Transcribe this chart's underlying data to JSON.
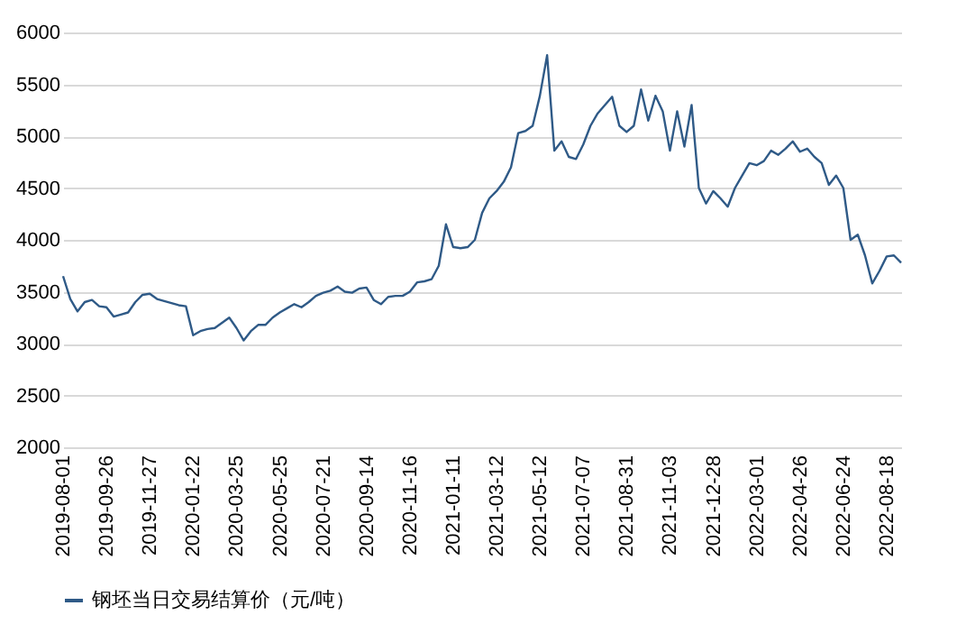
{
  "chart_data": {
    "type": "line",
    "categories": [
      "2019-08-01",
      null,
      null,
      null,
      null,
      null,
      "2019-09-26",
      null,
      null,
      null,
      null,
      null,
      "2019-11-27",
      null,
      null,
      null,
      null,
      null,
      "2020-01-22",
      null,
      null,
      null,
      null,
      null,
      "2020-03-25",
      null,
      null,
      null,
      null,
      null,
      "2020-05-25",
      null,
      null,
      null,
      null,
      null,
      "2020-07-21",
      null,
      null,
      null,
      null,
      null,
      "2020-09-14",
      null,
      null,
      null,
      null,
      null,
      "2020-11-16",
      null,
      null,
      null,
      null,
      null,
      "2021-01-11",
      null,
      null,
      null,
      null,
      null,
      "2021-03-12",
      null,
      null,
      null,
      null,
      null,
      "2021-05-12",
      null,
      null,
      null,
      null,
      null,
      "2021-07-07",
      null,
      null,
      null,
      null,
      null,
      "2021-08-31",
      null,
      null,
      null,
      null,
      null,
      "2021-11-03",
      null,
      null,
      null,
      null,
      null,
      "2021-12-28",
      null,
      null,
      null,
      null,
      null,
      "2022-03-01",
      null,
      null,
      null,
      null,
      null,
      "2022-04-26",
      null,
      null,
      null,
      null,
      null,
      "2022-06-24",
      null,
      null,
      null,
      null,
      null,
      "2022-08-18",
      null,
      null
    ],
    "series": [
      {
        "name": "钢坯当日交易结算价（元/吨）",
        "color": "#2f5a87",
        "values": [
          3650,
          3430,
          3310,
          3400,
          3420,
          3360,
          3350,
          3260,
          3280,
          3300,
          3400,
          3470,
          3480,
          3430,
          3410,
          3390,
          3370,
          3360,
          3080,
          3120,
          3140,
          3150,
          3200,
          3250,
          3150,
          3030,
          3120,
          3180,
          3180,
          3250,
          3300,
          3340,
          3380,
          3350,
          3400,
          3460,
          3490,
          3510,
          3550,
          3500,
          3490,
          3530,
          3540,
          3420,
          3380,
          3450,
          3460,
          3460,
          3500,
          3590,
          3600,
          3620,
          3750,
          4150,
          3930,
          3920,
          3930,
          4000,
          4260,
          4400,
          4470,
          4560,
          4700,
          5030,
          5050,
          5100,
          5390,
          5780,
          4860,
          4950,
          4800,
          4780,
          4920,
          5100,
          5220,
          5300,
          5380,
          5100,
          5040,
          5100,
          5450,
          5150,
          5390,
          5240,
          4860,
          5240,
          4900,
          5300,
          4500,
          4350,
          4470,
          4400,
          4320,
          4500,
          4620,
          4740,
          4720,
          4760,
          4860,
          4820,
          4880,
          4950,
          4850,
          4880,
          4800,
          4740,
          4530,
          4620,
          4500,
          4000,
          4050,
          3850,
          3580,
          3700,
          3840,
          3850,
          3780
        ]
      }
    ],
    "ylim": [
      2000,
      6000
    ],
    "yticks": [
      2000,
      2500,
      3000,
      3500,
      4000,
      4500,
      5000,
      5500,
      6000
    ],
    "grid": "y",
    "legend": "bottom",
    "marker": "none",
    "line_style": "solid"
  }
}
